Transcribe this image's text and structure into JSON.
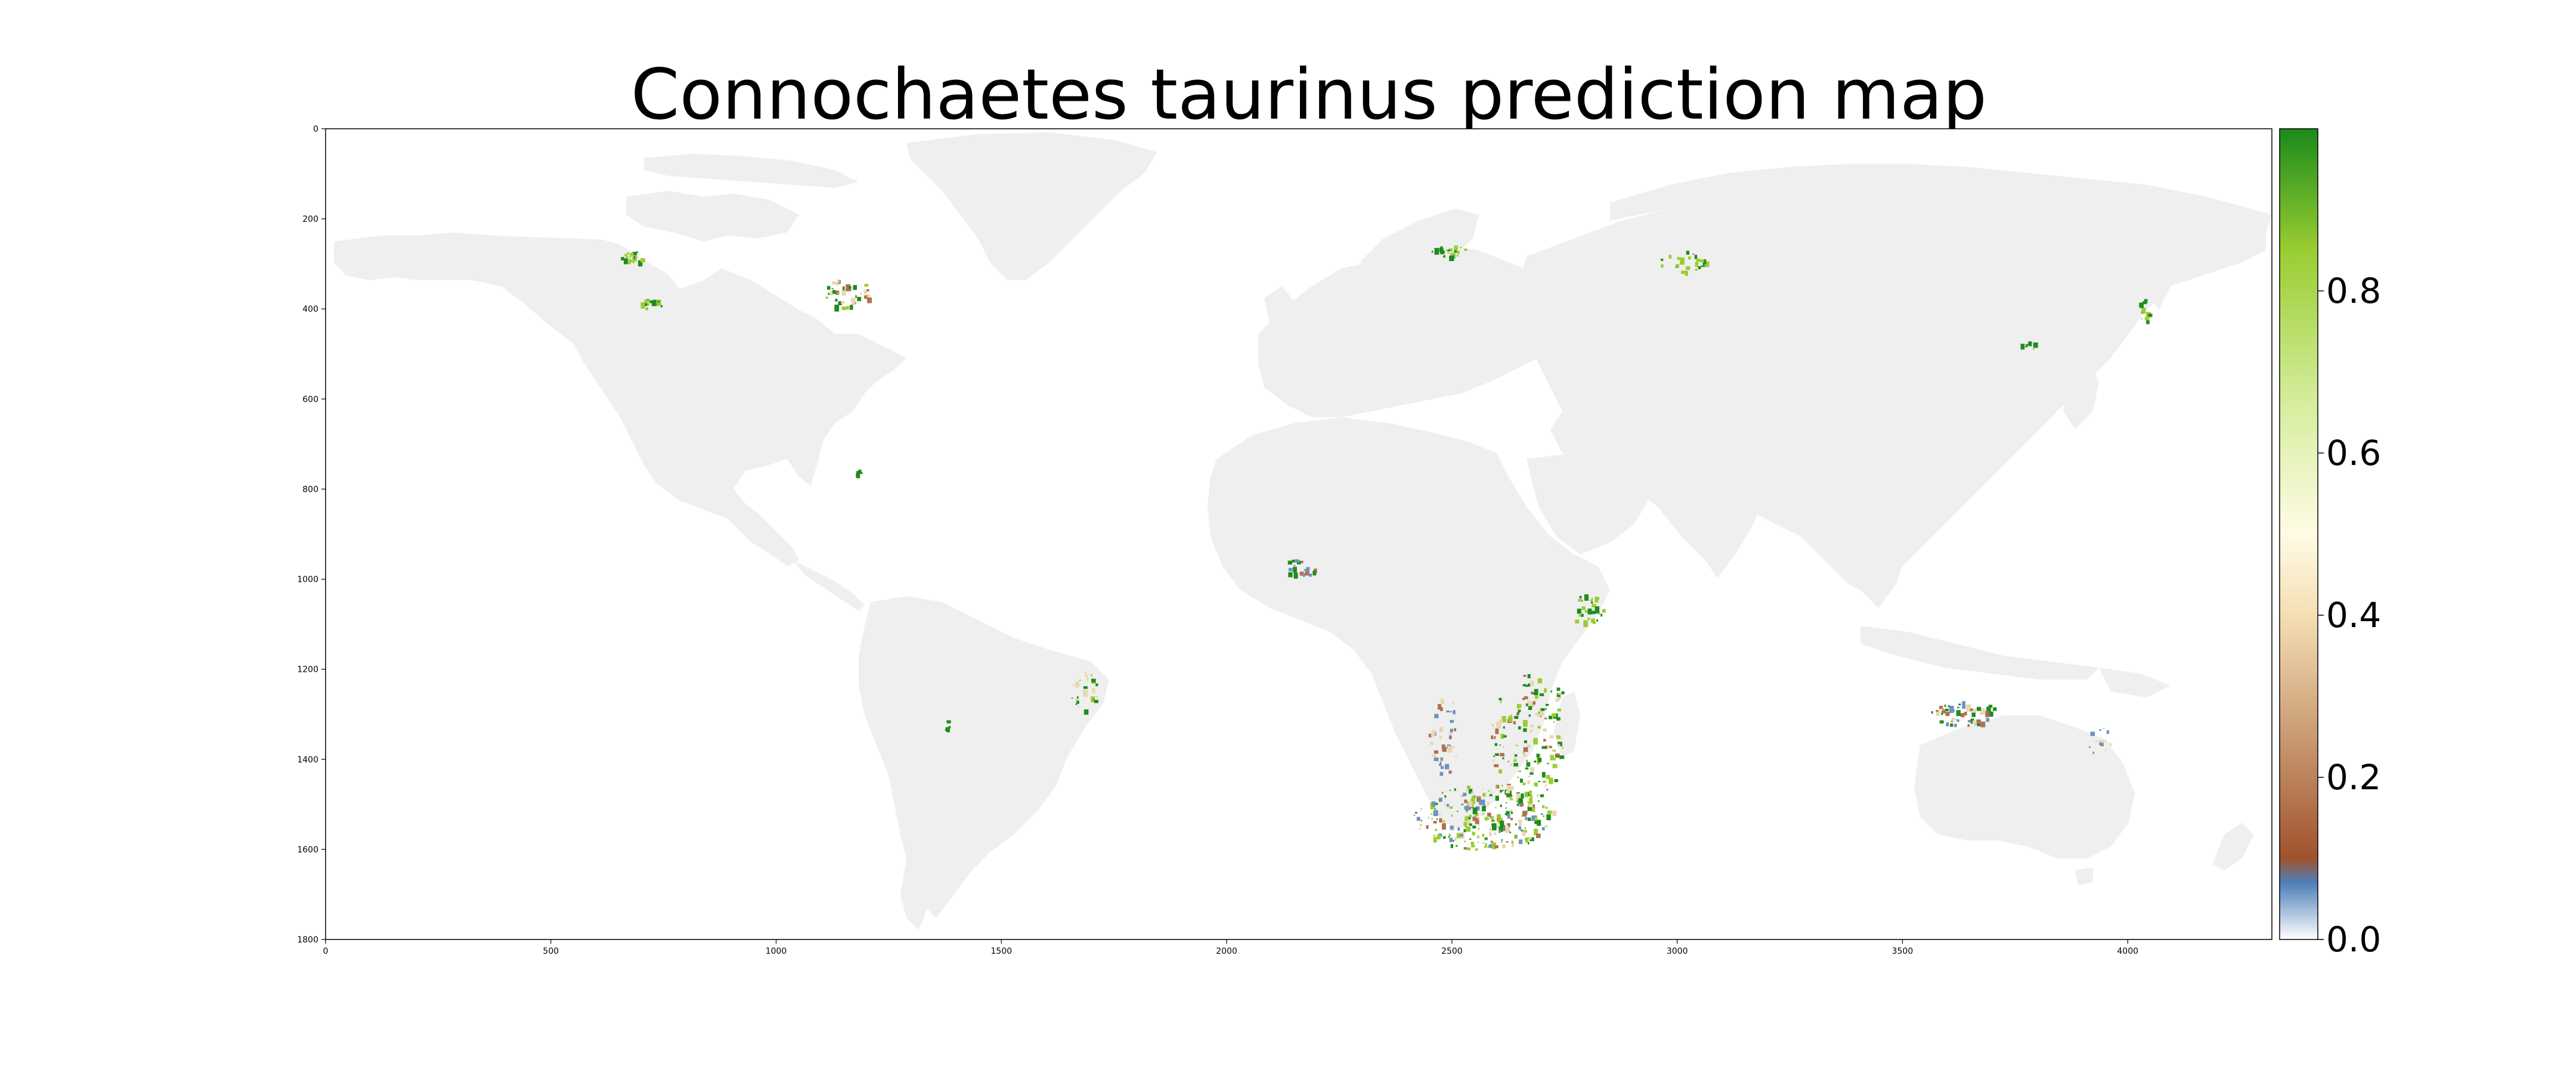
{
  "title": "Connochaetes taurinus prediction map",
  "map": {
    "x_ticks": [
      "0",
      "500",
      "1000",
      "1500",
      "2000",
      "2500",
      "3000",
      "3500",
      "4000"
    ],
    "x_tick_values": [
      0,
      500,
      1000,
      1500,
      2000,
      2500,
      3000,
      3500,
      4000
    ],
    "y_ticks": [
      "0",
      "200",
      "400",
      "600",
      "800",
      "1000",
      "1200",
      "1400",
      "1600",
      "1800"
    ],
    "y_tick_values": [
      0,
      200,
      400,
      600,
      800,
      1000,
      1200,
      1400,
      1600,
      1800
    ],
    "x_range": [
      0,
      4320
    ],
    "y_range": [
      0,
      1800
    ],
    "land_color": "#efefef",
    "background_color": "#ffffff"
  },
  "colorbar": {
    "ticks": [
      "0.0",
      "0.2",
      "0.4",
      "0.6",
      "0.8"
    ],
    "tick_values": [
      0.0,
      0.2,
      0.4,
      0.6,
      0.8
    ],
    "range": [
      0.0,
      1.0
    ],
    "colors": [
      "#ffffff",
      "#4d7fb8",
      "#a0522d",
      "#c99a73",
      "#f5deb3",
      "#fffbe6",
      "#d9efa3",
      "#9acd32",
      "#1a8a1a"
    ]
  },
  "hotspot_colors": {
    "high": "#1e8c1e",
    "mid_high": "#9acd32",
    "mid": "#e8d8b0",
    "low": "#b07050",
    "very_low": "#6b93c4"
  }
}
